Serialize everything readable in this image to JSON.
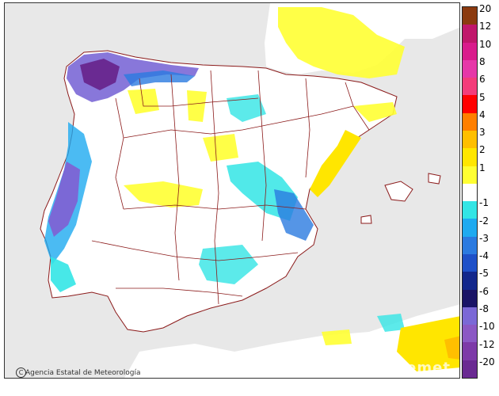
{
  "map": {
    "credit": "Agencia Estatal de Meteorología",
    "watermark": "aemet",
    "colors": {
      "sea": "#e8e8e8",
      "land": "#ffffff",
      "border": "#8b1a1a"
    }
  },
  "legend": {
    "items": [
      {
        "label": "20",
        "color": "#8b3a0f"
      },
      {
        "label": "12",
        "color": "#c0176b"
      },
      {
        "label": "10",
        "color": "#d91c8c"
      },
      {
        "label": "8",
        "color": "#e637a8"
      },
      {
        "label": "6",
        "color": "#f33c7a"
      },
      {
        "label": "5",
        "color": "#ff0000"
      },
      {
        "label": "4",
        "color": "#ff7f00"
      },
      {
        "label": "3",
        "color": "#ffbf00"
      },
      {
        "label": "2",
        "color": "#ffe600"
      },
      {
        "label": "1",
        "color": "#ffff33"
      },
      {
        "label": "",
        "color": "#ffffff"
      },
      {
        "label": "-1",
        "color": "#33e5e5"
      },
      {
        "label": "-2",
        "color": "#1eaaf0"
      },
      {
        "label": "-3",
        "color": "#2b7ae0"
      },
      {
        "label": "-4",
        "color": "#1e50c8"
      },
      {
        "label": "-5",
        "color": "#13288c"
      },
      {
        "label": "-6",
        "color": "#1a1466"
      },
      {
        "label": "-8",
        "color": "#7b68d6"
      },
      {
        "label": "-10",
        "color": "#8b58c4"
      },
      {
        "label": "-12",
        "color": "#7d3aa8"
      },
      {
        "label": "-20",
        "color": "#6a2a92"
      }
    ]
  }
}
